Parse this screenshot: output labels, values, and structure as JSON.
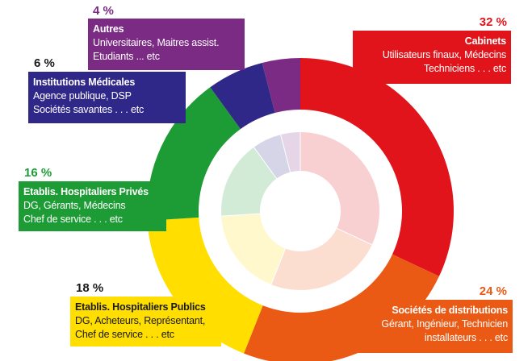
{
  "chart_data": {
    "type": "pie",
    "style": "donut",
    "segments": [
      {
        "value": 32,
        "label": "32 %",
        "title": "Cabinets",
        "lines": [
          "Utilisateurs finaux, Médecins",
          "Techniciens . . . etc"
        ],
        "color": "#e2141b",
        "pct_color": "#e2141b",
        "text_color": "#ffffff"
      },
      {
        "value": 24,
        "label": "24 %",
        "title": "Sociétés de distributions",
        "lines": [
          "Gérant, Ingénieur, Technicien",
          "installateurs . . . etc"
        ],
        "color": "#ea5a14",
        "pct_color": "#ea5a14",
        "text_color": "#ffffff"
      },
      {
        "value": 18,
        "label": "18 %",
        "title": "Etablis. Hospitaliers Publics",
        "lines": [
          "DG, Acheteurs, Représentant,",
          "Chef de service . . . etc"
        ],
        "color": "#ffde00",
        "pct_color": "#1a1a1a",
        "text_color": "#1a1a1a"
      },
      {
        "value": 16,
        "label": "16 %",
        "title": "Etablis. Hospitaliers Privés",
        "lines": [
          "DG, Gérants, Médecins",
          "Chef de service . . . etc"
        ],
        "color": "#1d9c35",
        "pct_color": "#1d9c35",
        "text_color": "#ffffff"
      },
      {
        "value": 6,
        "label": "6 %",
        "title": "Institutions Médicales",
        "lines": [
          "Agence publique, DSP",
          "Sociétés savantes . . . etc"
        ],
        "color": "#302889",
        "pct_color": "#1a1a1a",
        "text_color": "#ffffff"
      },
      {
        "value": 4,
        "label": "4 %",
        "title": "Autres",
        "lines": [
          "Universitaires, Maitres assist.",
          "Etudiants ... etc"
        ],
        "color": "#7c2b84",
        "pct_color": "#7c2b84",
        "text_color": "#ffffff"
      }
    ]
  }
}
